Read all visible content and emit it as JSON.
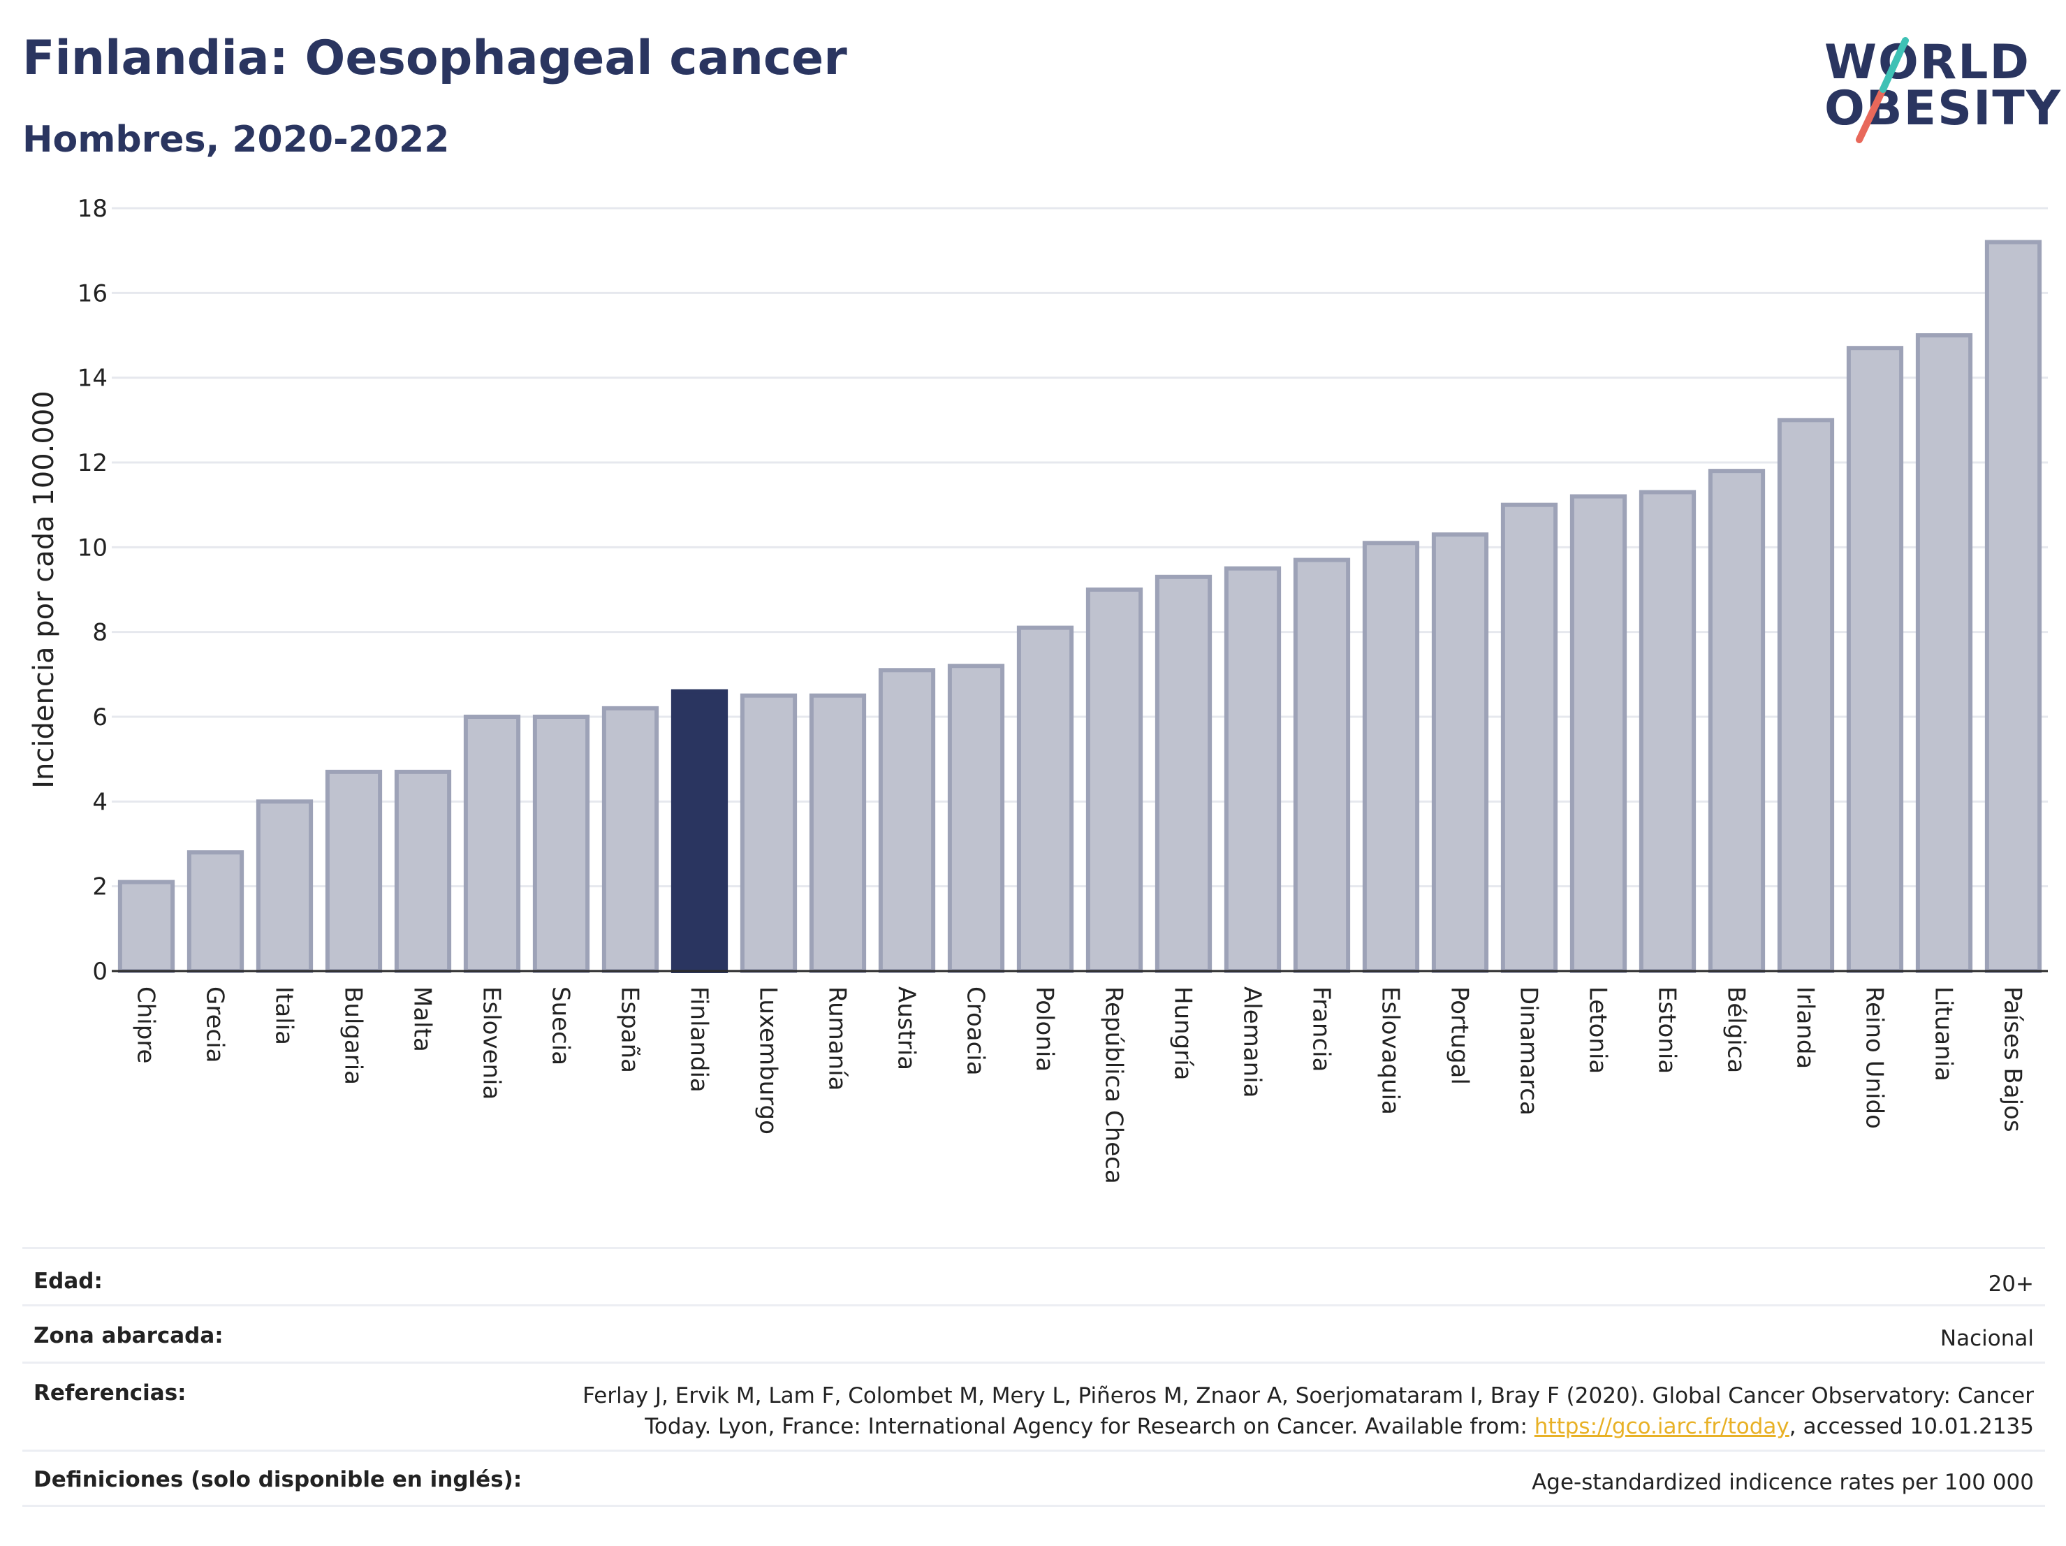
{
  "title": "Finlandia: Oesophageal cancer",
  "subtitle": "Hombres, 2020-2022",
  "logo": {
    "line1": "WORLD",
    "line2": "OBESITY",
    "accent_teal": "#3ec1b5",
    "accent_red": "#e8685a"
  },
  "colors": {
    "bar_default": "#bfc2cf",
    "bar_border": "#9da2b7",
    "bar_highlight": "#2a3560",
    "grid": "#e6e8ee",
    "text": "#2a3560"
  },
  "chart_data": {
    "type": "bar",
    "title": "Finlandia: Oesophageal cancer",
    "subtitle": "Hombres, 2020-2022",
    "xlabel": "",
    "ylabel": "Incidencia por cada 100.000",
    "ylim": [
      0,
      18
    ],
    "yticks": [
      0,
      2,
      4,
      6,
      8,
      10,
      12,
      14,
      16,
      18
    ],
    "grid": true,
    "highlight": "Finlandia",
    "categories": [
      "Chipre",
      "Grecia",
      "Italia",
      "Bulgaria",
      "Malta",
      "Eslovenia",
      "Suecia",
      "España",
      "Finlandia",
      "Luxemburgo",
      "Rumanía",
      "Austria",
      "Croacia",
      "Polonia",
      "República Checa",
      "Hungría",
      "Alemania",
      "Francia",
      "Eslovaquia",
      "Portugal",
      "Dinamarca",
      "Letonia",
      "Estonia",
      "Bélgica",
      "Irlanda",
      "Reino Unido",
      "Lituania",
      "Países Bajos"
    ],
    "values": [
      2.1,
      2.8,
      4.0,
      4.7,
      4.7,
      6.0,
      6.0,
      6.2,
      6.6,
      6.5,
      6.5,
      7.1,
      7.2,
      8.1,
      9.0,
      9.3,
      9.5,
      9.7,
      10.1,
      10.3,
      11.0,
      11.2,
      11.3,
      11.8,
      13.0,
      14.7,
      15.0,
      17.2
    ]
  },
  "info": {
    "age_label": "Edad:",
    "age_value": "20+",
    "area_label": "Zona abarcada:",
    "area_value": "Nacional",
    "ref_label": "Referencias:",
    "ref_text_1": "Ferlay J, Ervik M, Lam F, Colombet M, Mery L, Piñeros M, Znaor A, Soerjomataram I, Bray F (2020). Global Cancer Observatory: Cancer",
    "ref_text_2a": "Today. Lyon, France: International Agency for Research on Cancer. Available from: ",
    "ref_link": "https://gco.iarc.fr/today",
    "ref_text_2b": ", accessed 10.01.2135",
    "def_label": "Definiciones (solo disponible en inglés):",
    "def_value": "Age-standardized indicence rates per 100 000"
  }
}
